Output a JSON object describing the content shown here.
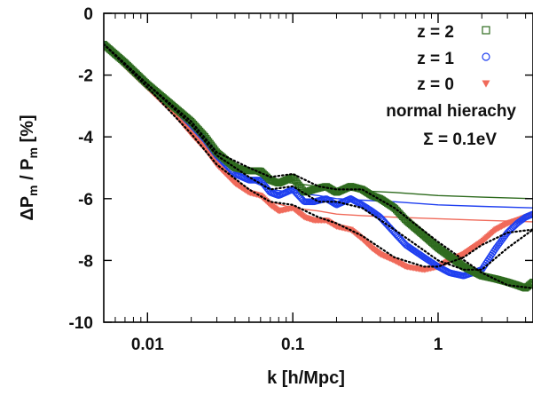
{
  "chart_data": {
    "type": "scatter",
    "xlabel": "k [h/Mpc]",
    "ylabel": "ΔP_m / P_m [%]",
    "xscale": "log",
    "xlim": [
      0.005,
      4.5
    ],
    "ylim": [
      -10,
      0
    ],
    "x_ticks": [
      0.01,
      0.1,
      1
    ],
    "x_tick_labels": [
      "0.01",
      "0.1",
      "1"
    ],
    "y_ticks": [
      0,
      -2,
      -4,
      -6,
      -8,
      -10
    ],
    "y_tick_labels": [
      "0",
      "-2",
      "-4",
      "-6",
      "-8",
      "-10"
    ],
    "legend_position": "top-right",
    "annotations": [
      "normal hierachy",
      "Σ = 0.1eV"
    ],
    "series": [
      {
        "name": "z = 2",
        "marker": "square",
        "color": "#2e6b1e",
        "x": [
          0.005,
          0.007,
          0.01,
          0.015,
          0.02,
          0.025,
          0.03,
          0.04,
          0.05,
          0.06,
          0.07,
          0.08,
          0.1,
          0.12,
          0.14,
          0.17,
          0.2,
          0.25,
          0.3,
          0.35,
          0.4,
          0.5,
          0.6,
          0.8,
          1.0,
          1.5,
          2.0,
          2.5,
          3.0,
          3.5,
          4.0,
          4.5
        ],
        "y": [
          -1.0,
          -1.6,
          -2.3,
          -3.0,
          -3.5,
          -4.0,
          -4.5,
          -5.0,
          -5.1,
          -5.1,
          -5.4,
          -5.5,
          -5.3,
          -5.8,
          -5.7,
          -5.6,
          -5.8,
          -5.6,
          -5.7,
          -5.9,
          -6.0,
          -6.3,
          -6.7,
          -7.2,
          -7.6,
          -8.2,
          -8.5,
          -8.6,
          -8.7,
          -8.8,
          -8.9,
          -8.7
        ]
      },
      {
        "name": "z = 1",
        "marker": "circle",
        "color": "#1f3ff0",
        "x": [
          0.005,
          0.007,
          0.01,
          0.015,
          0.02,
          0.025,
          0.03,
          0.04,
          0.05,
          0.06,
          0.07,
          0.08,
          0.1,
          0.12,
          0.14,
          0.17,
          0.2,
          0.25,
          0.3,
          0.35,
          0.4,
          0.5,
          0.6,
          0.8,
          1.0,
          1.2,
          1.5,
          2.0,
          2.5,
          3.0,
          3.5,
          4.0,
          4.5
        ],
        "y": [
          -1.0,
          -1.6,
          -2.3,
          -3.0,
          -3.6,
          -4.1,
          -4.6,
          -5.2,
          -5.4,
          -5.4,
          -5.8,
          -5.9,
          -5.7,
          -6.1,
          -6.1,
          -6.0,
          -6.2,
          -6.0,
          -6.2,
          -6.4,
          -6.6,
          -7.1,
          -7.5,
          -7.9,
          -8.2,
          -8.4,
          -8.5,
          -8.3,
          -7.6,
          -7.1,
          -6.8,
          -6.6,
          -6.5
        ]
      },
      {
        "name": "z = 0",
        "marker": "triangle-down",
        "color": "#f06a5a",
        "x": [
          0.005,
          0.007,
          0.01,
          0.015,
          0.02,
          0.025,
          0.03,
          0.04,
          0.05,
          0.06,
          0.07,
          0.08,
          0.1,
          0.12,
          0.14,
          0.17,
          0.2,
          0.25,
          0.3,
          0.35,
          0.4,
          0.5,
          0.6,
          0.8,
          1.0,
          1.2,
          1.5,
          2.0,
          2.5,
          3.0,
          3.5,
          4.0,
          4.5
        ],
        "y": [
          -1.0,
          -1.7,
          -2.4,
          -3.2,
          -3.9,
          -4.4,
          -4.9,
          -5.5,
          -5.8,
          -5.9,
          -6.2,
          -6.4,
          -6.3,
          -6.6,
          -6.7,
          -6.7,
          -6.9,
          -7.0,
          -7.3,
          -7.6,
          -7.8,
          -8.0,
          -8.2,
          -8.3,
          -8.2,
          -8.0,
          -7.8,
          -7.4,
          -7.0,
          -6.8,
          -6.7,
          -6.6,
          -6.5
        ]
      }
    ],
    "lines": [
      {
        "series": "z = 2",
        "color": "#2e6b1e",
        "x": [
          0.005,
          0.01,
          0.02,
          0.03,
          0.05,
          0.07,
          0.1,
          0.15,
          0.2,
          0.3,
          0.5,
          1.0,
          2.0,
          4.5
        ],
        "y": [
          -1.0,
          -2.3,
          -3.6,
          -4.5,
          -5.1,
          -5.4,
          -5.5,
          -5.6,
          -5.7,
          -5.75,
          -5.8,
          -5.9,
          -5.95,
          -6.0
        ]
      },
      {
        "series": "z = 1",
        "color": "#1f3ff0",
        "x": [
          0.005,
          0.01,
          0.02,
          0.03,
          0.05,
          0.07,
          0.1,
          0.15,
          0.2,
          0.3,
          0.5,
          1.0,
          2.0,
          4.5
        ],
        "y": [
          -1.0,
          -2.3,
          -3.7,
          -4.6,
          -5.4,
          -5.7,
          -5.8,
          -5.9,
          -6.0,
          -6.05,
          -6.1,
          -6.2,
          -6.25,
          -6.3
        ]
      },
      {
        "series": "z = 0",
        "color": "#f06a5a",
        "x": [
          0.005,
          0.01,
          0.02,
          0.03,
          0.05,
          0.07,
          0.1,
          0.15,
          0.2,
          0.3,
          0.5,
          1.0,
          2.0,
          4.5
        ],
        "y": [
          -1.0,
          -2.4,
          -3.9,
          -4.9,
          -5.8,
          -6.1,
          -6.3,
          -6.4,
          -6.5,
          -6.55,
          -6.6,
          -6.65,
          -6.7,
          -6.75
        ]
      }
    ],
    "dotted_lines": [
      {
        "series": "z = 2",
        "color": "#000000",
        "x": [
          0.005,
          0.01,
          0.02,
          0.03,
          0.05,
          0.07,
          0.1,
          0.15,
          0.2,
          0.3,
          0.5,
          1.0,
          2.0,
          3.0,
          4.5
        ],
        "y": [
          -1.0,
          -2.3,
          -3.5,
          -4.5,
          -5.0,
          -5.3,
          -5.2,
          -5.6,
          -5.7,
          -5.7,
          -6.3,
          -7.4,
          -8.4,
          -8.8,
          -8.9
        ]
      },
      {
        "series": "z = 1",
        "color": "#000000",
        "x": [
          0.005,
          0.01,
          0.02,
          0.03,
          0.05,
          0.07,
          0.1,
          0.15,
          0.2,
          0.3,
          0.5,
          1.0,
          1.5,
          2.0,
          3.0,
          4.5
        ],
        "y": [
          -1.0,
          -2.3,
          -3.6,
          -4.6,
          -5.3,
          -5.7,
          -5.6,
          -6.1,
          -6.1,
          -6.3,
          -7.0,
          -8.0,
          -8.3,
          -8.3,
          -7.6,
          -7.0
        ]
      },
      {
        "series": "z = 0",
        "color": "#000000",
        "x": [
          0.005,
          0.01,
          0.02,
          0.03,
          0.05,
          0.07,
          0.1,
          0.15,
          0.2,
          0.3,
          0.5,
          0.8,
          1.0,
          1.5,
          2.0,
          3.0,
          4.5
        ],
        "y": [
          -1.0,
          -2.4,
          -3.9,
          -4.9,
          -5.7,
          -6.1,
          -6.2,
          -6.6,
          -6.8,
          -7.2,
          -7.9,
          -8.2,
          -8.2,
          -7.9,
          -7.5,
          -7.1,
          -7.0
        ]
      }
    ]
  }
}
